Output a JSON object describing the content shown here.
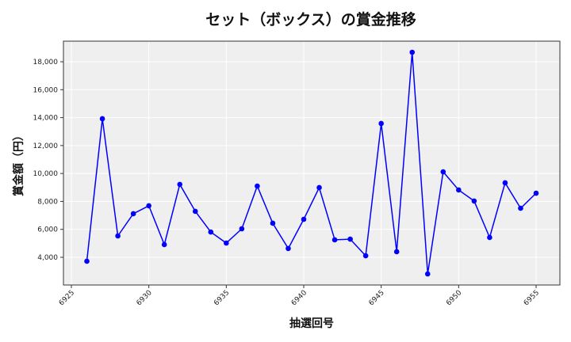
{
  "chart_data": {
    "type": "line",
    "title": "セット（ボックス）の賞金推移",
    "xlabel": "抽選回号",
    "ylabel": "賞金額（円）",
    "x": [
      6926,
      6927,
      6928,
      6929,
      6930,
      6931,
      6932,
      6933,
      6934,
      6935,
      6936,
      6937,
      6938,
      6939,
      6940,
      6941,
      6942,
      6943,
      6944,
      6945,
      6946,
      6947,
      6948,
      6949,
      6950,
      6951,
      6952,
      6953,
      6954,
      6955
    ],
    "values": [
      3720,
      13920,
      5530,
      7120,
      7690,
      4910,
      9220,
      7290,
      5810,
      5020,
      6040,
      9100,
      6440,
      4630,
      6720,
      8990,
      5250,
      5300,
      4110,
      13580,
      4400,
      18680,
      2810,
      10120,
      8820,
      8030,
      5420,
      9330,
      7510,
      8590
    ],
    "xlim": [
      6924.5,
      6956.5
    ],
    "ylim": [
      2000,
      19500
    ],
    "xticks": [
      6925,
      6930,
      6935,
      6940,
      6945,
      6950,
      6955
    ],
    "yticks": [
      4000,
      6000,
      8000,
      10000,
      12000,
      14000,
      16000,
      18000
    ],
    "ytick_labels": [
      "4,000",
      "6,000",
      "8,000",
      "10,000",
      "12,000",
      "14,000",
      "16,000",
      "18,000"
    ],
    "grid": true,
    "legend": null,
    "colors": {
      "line": "#0000ff",
      "marker": "#0000ff",
      "plot_background": "#efefef",
      "grid": "#ffffff",
      "frame": "#333333"
    }
  }
}
